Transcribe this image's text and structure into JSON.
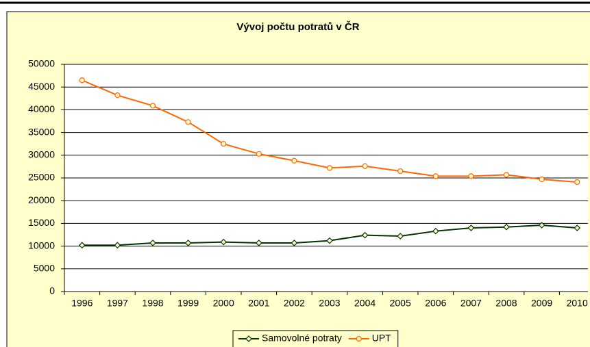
{
  "chart_data": {
    "type": "line",
    "title": "Vývoj počtu potratů v ČR",
    "categories": [
      "1996",
      "1997",
      "1998",
      "1999",
      "2000",
      "2001",
      "2002",
      "2003",
      "2004",
      "2005",
      "2006",
      "2007",
      "2008",
      "2009",
      "2010"
    ],
    "series": [
      {
        "name": "Samovolné potraty",
        "color": "#003300",
        "marker": "diamond",
        "values": [
          10200,
          10200,
          10700,
          10700,
          10900,
          10700,
          10700,
          11200,
          12400,
          12200,
          13300,
          14000,
          14200,
          14600,
          14000
        ]
      },
      {
        "name": "UPT",
        "color": "#ff6600",
        "marker": "circle",
        "values": [
          46500,
          43200,
          40900,
          37300,
          32500,
          30300,
          28800,
          27200,
          27600,
          26500,
          25400,
          25400,
          25700,
          24700,
          24100
        ]
      }
    ],
    "ylim": [
      0,
      50000
    ],
    "yticks": [
      0,
      5000,
      10000,
      15000,
      20000,
      25000,
      30000,
      35000,
      40000,
      45000,
      50000
    ],
    "grid": true,
    "legend": "bottom"
  }
}
